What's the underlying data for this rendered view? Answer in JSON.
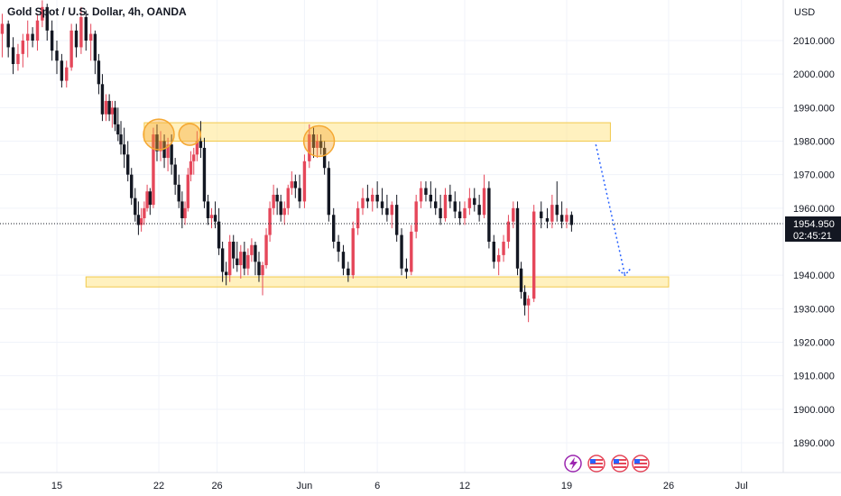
{
  "header": {
    "symbol_label": "Gold Spot / U.S. Dollar, 4h, OANDA"
  },
  "price_axis": {
    "currency": "USD",
    "ticks": [
      "2010.000",
      "2000.000",
      "1990.000",
      "1980.000",
      "1970.000",
      "1960.000",
      "1940.000",
      "1930.000",
      "1920.000",
      "1910.000",
      "1900.000",
      "1890.000"
    ]
  },
  "price_tag": {
    "price": "1954.950",
    "countdown": "02:45:21"
  },
  "time_axis": {
    "ticks": [
      "15",
      "22",
      "26",
      "Jun",
      "6",
      "12",
      "19",
      "26",
      "Jul"
    ]
  },
  "colors": {
    "up": "#e5475a",
    "down": "#131722",
    "zone": "#ffe68a",
    "circle": "#f5a833",
    "arrow": "#2962ff"
  },
  "icons": [
    "lightning-icon",
    "us-flag-icon",
    "us-flag-icon",
    "us-flag-icon"
  ],
  "chart_data": {
    "type": "candlestick",
    "x_range": [
      "May 11",
      "Jul 2"
    ],
    "ylim": [
      1883,
      2020
    ],
    "grid": true,
    "current_price": 1954.95,
    "resistance_zone": {
      "low": 1980,
      "high": 1985.5,
      "x_from": "May 21",
      "x_to": "Jun 22"
    },
    "support_zone": {
      "low": 1936.5,
      "high": 1939.5,
      "x_from": "May 17",
      "x_to": "Jun 26"
    },
    "highlight_circles": [
      {
        "x": "May 22",
        "y": 1982
      },
      {
        "x": "May 24",
        "y": 1982
      },
      {
        "x": "Jun 2",
        "y": 1980
      }
    ],
    "projection_arrow": {
      "from": {
        "x": "Jun 21",
        "y": 1979
      },
      "to": {
        "x": "Jun 23",
        "y": 1940
      }
    },
    "candles": [
      {
        "x": "May 11",
        "o": 2018,
        "h": 2022,
        "l": 2008,
        "c": 2012
      },
      {
        "x": "May 11",
        "o": 2012,
        "h": 2018,
        "l": 2005,
        "c": 2015
      },
      {
        "x": "May 12",
        "o": 2015,
        "h": 2016,
        "l": 2005,
        "c": 2008
      },
      {
        "x": "May 12",
        "o": 2008,
        "h": 2011,
        "l": 2000,
        "c": 2003
      },
      {
        "x": "May 12",
        "o": 2003,
        "h": 2009,
        "l": 2001,
        "c": 2006
      },
      {
        "x": "May 13",
        "o": 2006,
        "h": 2012,
        "l": 2002,
        "c": 2010
      },
      {
        "x": "May 13",
        "o": 2010,
        "h": 2016,
        "l": 2005,
        "c": 2012
      },
      {
        "x": "May 13",
        "o": 2012,
        "h": 2014,
        "l": 2008,
        "c": 2010
      },
      {
        "x": "May 14",
        "o": 2010,
        "h": 2018,
        "l": 2007,
        "c": 2016
      },
      {
        "x": "May 14",
        "o": 2016,
        "h": 2022,
        "l": 2014,
        "c": 2020
      },
      {
        "x": "May 14",
        "o": 2020,
        "h": 2021,
        "l": 2010,
        "c": 2013
      },
      {
        "x": "May 15",
        "o": 2013,
        "h": 2016,
        "l": 2004,
        "c": 2007
      },
      {
        "x": "May 15",
        "o": 2007,
        "h": 2010,
        "l": 2000,
        "c": 2004
      },
      {
        "x": "May 15",
        "o": 2004,
        "h": 2006,
        "l": 1996,
        "c": 1998
      },
      {
        "x": "May 16",
        "o": 1998,
        "h": 2004,
        "l": 1996,
        "c": 2002
      },
      {
        "x": "May 16",
        "o": 2002,
        "h": 2015,
        "l": 2001,
        "c": 2013
      },
      {
        "x": "May 16",
        "o": 2013,
        "h": 2015,
        "l": 2005,
        "c": 2008
      },
      {
        "x": "May 17",
        "o": 2008,
        "h": 2020,
        "l": 2006,
        "c": 2017
      },
      {
        "x": "May 17",
        "o": 2017,
        "h": 2019,
        "l": 2007,
        "c": 2010
      },
      {
        "x": "May 17",
        "o": 2010,
        "h": 2015,
        "l": 2004,
        "c": 2012
      },
      {
        "x": "May 18",
        "o": 2012,
        "h": 2013,
        "l": 2000,
        "c": 2004
      },
      {
        "x": "May 18",
        "o": 2004,
        "h": 2006,
        "l": 1994,
        "c": 1997
      },
      {
        "x": "May 18",
        "o": 1997,
        "h": 2000,
        "l": 1986,
        "c": 1988
      },
      {
        "x": "May 18",
        "o": 1988,
        "h": 1994,
        "l": 1986,
        "c": 1992
      },
      {
        "x": "May 19",
        "o": 1992,
        "h": 1994,
        "l": 1986,
        "c": 1988
      },
      {
        "x": "May 19",
        "o": 1988,
        "h": 1992,
        "l": 1984,
        "c": 1990
      },
      {
        "x": "May 19",
        "o": 1990,
        "h": 1992,
        "l": 1983,
        "c": 1985
      },
      {
        "x": "May 19",
        "o": 1985,
        "h": 1990,
        "l": 1980,
        "c": 1982
      },
      {
        "x": "May 19",
        "o": 1982,
        "h": 1986,
        "l": 1976,
        "c": 1979
      },
      {
        "x": "May 20",
        "o": 1979,
        "h": 1984,
        "l": 1972,
        "c": 1976
      },
      {
        "x": "May 20",
        "o": 1976,
        "h": 1980,
        "l": 1968,
        "c": 1970
      },
      {
        "x": "May 20",
        "o": 1970,
        "h": 1972,
        "l": 1961,
        "c": 1963
      },
      {
        "x": "May 20",
        "o": 1963,
        "h": 1966,
        "l": 1956,
        "c": 1958
      },
      {
        "x": "May 21",
        "o": 1958,
        "h": 1962,
        "l": 1952,
        "c": 1955
      },
      {
        "x": "May 21",
        "o": 1955,
        "h": 1960,
        "l": 1953,
        "c": 1957
      },
      {
        "x": "May 21",
        "o": 1957,
        "h": 1962,
        "l": 1955,
        "c": 1960
      },
      {
        "x": "May 21",
        "o": 1960,
        "h": 1967,
        "l": 1959,
        "c": 1965
      },
      {
        "x": "May 21",
        "o": 1965,
        "h": 1966,
        "l": 1958,
        "c": 1961
      },
      {
        "x": "May 22",
        "o": 1961,
        "h": 1984,
        "l": 1960,
        "c": 1982
      },
      {
        "x": "May 22",
        "o": 1982,
        "h": 1985,
        "l": 1974,
        "c": 1977
      },
      {
        "x": "May 22",
        "o": 1977,
        "h": 1983,
        "l": 1974,
        "c": 1980
      },
      {
        "x": "May 22",
        "o": 1980,
        "h": 1982,
        "l": 1972,
        "c": 1975
      },
      {
        "x": "May 23",
        "o": 1975,
        "h": 1981,
        "l": 1971,
        "c": 1979
      },
      {
        "x": "May 23",
        "o": 1979,
        "h": 1982,
        "l": 1970,
        "c": 1973
      },
      {
        "x": "May 23",
        "o": 1973,
        "h": 1975,
        "l": 1964,
        "c": 1967
      },
      {
        "x": "May 23",
        "o": 1967,
        "h": 1970,
        "l": 1960,
        "c": 1962
      },
      {
        "x": "May 24",
        "o": 1962,
        "h": 1965,
        "l": 1954,
        "c": 1957
      },
      {
        "x": "May 24",
        "o": 1957,
        "h": 1962,
        "l": 1955,
        "c": 1960
      },
      {
        "x": "May 24",
        "o": 1960,
        "h": 1972,
        "l": 1959,
        "c": 1970
      },
      {
        "x": "May 24",
        "o": 1970,
        "h": 1977,
        "l": 1968,
        "c": 1974
      },
      {
        "x": "May 24",
        "o": 1974,
        "h": 1978,
        "l": 1970,
        "c": 1976
      },
      {
        "x": "May 25",
        "o": 1976,
        "h": 1983,
        "l": 1974,
        "c": 1980
      },
      {
        "x": "May 25",
        "o": 1980,
        "h": 1986,
        "l": 1975,
        "c": 1978
      },
      {
        "x": "May 25",
        "o": 1978,
        "h": 1981,
        "l": 1960,
        "c": 1962
      },
      {
        "x": "May 25",
        "o": 1962,
        "h": 1964,
        "l": 1955,
        "c": 1957
      },
      {
        "x": "May 26",
        "o": 1957,
        "h": 1960,
        "l": 1954,
        "c": 1958
      },
      {
        "x": "May 26",
        "o": 1958,
        "h": 1962,
        "l": 1954,
        "c": 1956
      },
      {
        "x": "May 26",
        "o": 1956,
        "h": 1960,
        "l": 1946,
        "c": 1948
      },
      {
        "x": "May 26",
        "o": 1948,
        "h": 1950,
        "l": 1938,
        "c": 1941
      },
      {
        "x": "May 27",
        "o": 1941,
        "h": 1944,
        "l": 1937,
        "c": 1940
      },
      {
        "x": "May 27",
        "o": 1940,
        "h": 1952,
        "l": 1938,
        "c": 1950
      },
      {
        "x": "May 27",
        "o": 1950,
        "h": 1952,
        "l": 1942,
        "c": 1945
      },
      {
        "x": "May 27",
        "o": 1945,
        "h": 1950,
        "l": 1941,
        "c": 1943
      },
      {
        "x": "May 28",
        "o": 1943,
        "h": 1949,
        "l": 1939,
        "c": 1947
      },
      {
        "x": "May 28",
        "o": 1947,
        "h": 1950,
        "l": 1940,
        "c": 1942
      },
      {
        "x": "May 28",
        "o": 1942,
        "h": 1948,
        "l": 1940,
        "c": 1946
      },
      {
        "x": "May 28",
        "o": 1946,
        "h": 1951,
        "l": 1944,
        "c": 1949
      },
      {
        "x": "May 29",
        "o": 1949,
        "h": 1950,
        "l": 1940,
        "c": 1944
      },
      {
        "x": "May 29",
        "o": 1944,
        "h": 1947,
        "l": 1938,
        "c": 1940
      },
      {
        "x": "May 29",
        "o": 1940,
        "h": 1944,
        "l": 1934,
        "c": 1943
      },
      {
        "x": "May 29",
        "o": 1943,
        "h": 1954,
        "l": 1942,
        "c": 1952
      },
      {
        "x": "May 30",
        "o": 1952,
        "h": 1962,
        "l": 1950,
        "c": 1960
      },
      {
        "x": "May 30",
        "o": 1960,
        "h": 1967,
        "l": 1958,
        "c": 1964
      },
      {
        "x": "May 30",
        "o": 1964,
        "h": 1966,
        "l": 1958,
        "c": 1962
      },
      {
        "x": "May 30",
        "o": 1962,
        "h": 1964,
        "l": 1956,
        "c": 1958
      },
      {
        "x": "May 31",
        "o": 1958,
        "h": 1962,
        "l": 1955,
        "c": 1960
      },
      {
        "x": "May 31",
        "o": 1960,
        "h": 1967,
        "l": 1958,
        "c": 1966
      },
      {
        "x": "May 31",
        "o": 1966,
        "h": 1971,
        "l": 1964,
        "c": 1968
      },
      {
        "x": "May 31",
        "o": 1968,
        "h": 1970,
        "l": 1963,
        "c": 1966
      },
      {
        "x": "Jun 1",
        "o": 1966,
        "h": 1970,
        "l": 1960,
        "c": 1962
      },
      {
        "x": "Jun 1",
        "o": 1962,
        "h": 1976,
        "l": 1960,
        "c": 1974
      },
      {
        "x": "Jun 1",
        "o": 1974,
        "h": 1985,
        "l": 1972,
        "c": 1982
      },
      {
        "x": "Jun 2",
        "o": 1982,
        "h": 1984,
        "l": 1975,
        "c": 1978
      },
      {
        "x": "Jun 2",
        "o": 1978,
        "h": 1982,
        "l": 1975,
        "c": 1980
      },
      {
        "x": "Jun 2",
        "o": 1980,
        "h": 1982,
        "l": 1976,
        "c": 1978
      },
      {
        "x": "Jun 2",
        "o": 1978,
        "h": 1980,
        "l": 1970,
        "c": 1972
      },
      {
        "x": "Jun 3",
        "o": 1972,
        "h": 1974,
        "l": 1956,
        "c": 1958
      },
      {
        "x": "Jun 3",
        "o": 1958,
        "h": 1960,
        "l": 1948,
        "c": 1950
      },
      {
        "x": "Jun 3",
        "o": 1950,
        "h": 1952,
        "l": 1944,
        "c": 1947
      },
      {
        "x": "Jun 4",
        "o": 1947,
        "h": 1949,
        "l": 1940,
        "c": 1942
      },
      {
        "x": "Jun 4",
        "o": 1942,
        "h": 1944,
        "l": 1938,
        "c": 1940
      },
      {
        "x": "Jun 4",
        "o": 1940,
        "h": 1956,
        "l": 1939,
        "c": 1954
      },
      {
        "x": "Jun 5",
        "o": 1954,
        "h": 1962,
        "l": 1952,
        "c": 1960
      },
      {
        "x": "Jun 5",
        "o": 1960,
        "h": 1966,
        "l": 1958,
        "c": 1963
      },
      {
        "x": "Jun 5",
        "o": 1963,
        "h": 1967,
        "l": 1960,
        "c": 1962
      },
      {
        "x": "Jun 6",
        "o": 1962,
        "h": 1966,
        "l": 1959,
        "c": 1964
      },
      {
        "x": "Jun 6",
        "o": 1964,
        "h": 1968,
        "l": 1960,
        "c": 1962
      },
      {
        "x": "Jun 6",
        "o": 1962,
        "h": 1966,
        "l": 1958,
        "c": 1960
      },
      {
        "x": "Jun 7",
        "o": 1960,
        "h": 1964,
        "l": 1956,
        "c": 1958
      },
      {
        "x": "Jun 7",
        "o": 1958,
        "h": 1962,
        "l": 1954,
        "c": 1961
      },
      {
        "x": "Jun 7",
        "o": 1961,
        "h": 1964,
        "l": 1950,
        "c": 1952
      },
      {
        "x": "Jun 8",
        "o": 1952,
        "h": 1954,
        "l": 1940,
        "c": 1942
      },
      {
        "x": "Jun 8",
        "o": 1942,
        "h": 1945,
        "l": 1939,
        "c": 1941
      },
      {
        "x": "Jun 8",
        "o": 1941,
        "h": 1955,
        "l": 1940,
        "c": 1953
      },
      {
        "x": "Jun 9",
        "o": 1953,
        "h": 1964,
        "l": 1951,
        "c": 1962
      },
      {
        "x": "Jun 9",
        "o": 1962,
        "h": 1968,
        "l": 1960,
        "c": 1966
      },
      {
        "x": "Jun 9",
        "o": 1966,
        "h": 1968,
        "l": 1962,
        "c": 1964
      },
      {
        "x": "Jun 10",
        "o": 1964,
        "h": 1968,
        "l": 1960,
        "c": 1962
      },
      {
        "x": "Jun 10",
        "o": 1962,
        "h": 1966,
        "l": 1958,
        "c": 1960
      },
      {
        "x": "Jun 10",
        "o": 1960,
        "h": 1964,
        "l": 1955,
        "c": 1957
      },
      {
        "x": "Jun 11",
        "o": 1957,
        "h": 1966,
        "l": 1956,
        "c": 1964
      },
      {
        "x": "Jun 11",
        "o": 1964,
        "h": 1967,
        "l": 1960,
        "c": 1962
      },
      {
        "x": "Jun 11",
        "o": 1962,
        "h": 1965,
        "l": 1957,
        "c": 1959
      },
      {
        "x": "Jun 12",
        "o": 1959,
        "h": 1962,
        "l": 1955,
        "c": 1957
      },
      {
        "x": "Jun 12",
        "o": 1957,
        "h": 1962,
        "l": 1955,
        "c": 1960
      },
      {
        "x": "Jun 12",
        "o": 1960,
        "h": 1966,
        "l": 1958,
        "c": 1963
      },
      {
        "x": "Jun 13",
        "o": 1963,
        "h": 1966,
        "l": 1959,
        "c": 1961
      },
      {
        "x": "Jun 13",
        "o": 1961,
        "h": 1964,
        "l": 1956,
        "c": 1958
      },
      {
        "x": "Jun 13",
        "o": 1958,
        "h": 1970,
        "l": 1957,
        "c": 1966
      },
      {
        "x": "Jun 14",
        "o": 1966,
        "h": 1968,
        "l": 1948,
        "c": 1950
      },
      {
        "x": "Jun 14",
        "o": 1950,
        "h": 1952,
        "l": 1942,
        "c": 1944
      },
      {
        "x": "Jun 14",
        "o": 1944,
        "h": 1948,
        "l": 1940,
        "c": 1946
      },
      {
        "x": "Jun 15",
        "o": 1946,
        "h": 1952,
        "l": 1944,
        "c": 1950
      },
      {
        "x": "Jun 15",
        "o": 1950,
        "h": 1958,
        "l": 1948,
        "c": 1956
      },
      {
        "x": "Jun 15",
        "o": 1956,
        "h": 1962,
        "l": 1954,
        "c": 1960
      },
      {
        "x": "Jun 16",
        "o": 1960,
        "h": 1962,
        "l": 1940,
        "c": 1942
      },
      {
        "x": "Jun 16",
        "o": 1942,
        "h": 1944,
        "l": 1933,
        "c": 1935
      },
      {
        "x": "Jun 16",
        "o": 1935,
        "h": 1937,
        "l": 1928,
        "c": 1931
      },
      {
        "x": "Jun 16",
        "o": 1931,
        "h": 1934,
        "l": 1926,
        "c": 1933
      },
      {
        "x": "Jun 17",
        "o": 1933,
        "h": 1961,
        "l": 1932,
        "c": 1959
      },
      {
        "x": "Jun 17",
        "o": 1959,
        "h": 1962,
        "l": 1954,
        "c": 1957
      },
      {
        "x": "Jun 18",
        "o": 1957,
        "h": 1960,
        "l": 1954,
        "c": 1956
      },
      {
        "x": "Jun 18",
        "o": 1956,
        "h": 1964,
        "l": 1954,
        "c": 1961
      },
      {
        "x": "Jun 18",
        "o": 1961,
        "h": 1968,
        "l": 1956,
        "c": 1958
      },
      {
        "x": "Jun 19",
        "o": 1958,
        "h": 1962,
        "l": 1954,
        "c": 1956
      },
      {
        "x": "Jun 19",
        "o": 1956,
        "h": 1960,
        "l": 1954,
        "c": 1958
      },
      {
        "x": "Jun 19",
        "o": 1958,
        "h": 1959,
        "l": 1953,
        "c": 1955
      }
    ]
  }
}
